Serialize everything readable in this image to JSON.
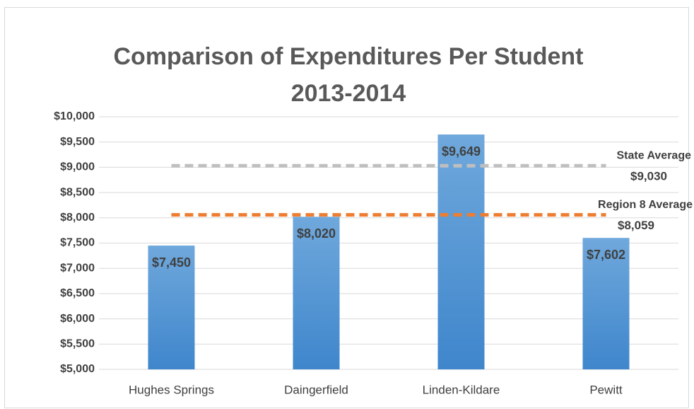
{
  "chart_data": {
    "type": "bar",
    "title": [
      "Comparison of Expenditures Per Student",
      "2013-2014"
    ],
    "categories": [
      "Hughes Springs",
      "Daingerfield",
      "Linden-Kildare",
      "Pewitt"
    ],
    "values": [
      7450,
      8020,
      9649,
      7602
    ],
    "value_labels": [
      "$7,450",
      "$8,020",
      "$9,649",
      "$7,602"
    ],
    "color": "#5b9bd5",
    "ylim": [
      5000,
      10000
    ],
    "yticks": [
      {
        "value": 5000,
        "label": "$5,000"
      },
      {
        "value": 5500,
        "label": "$5,500"
      },
      {
        "value": 6000,
        "label": "$6,000"
      },
      {
        "value": 6500,
        "label": "$6,500"
      },
      {
        "value": 7000,
        "label": "$7,000"
      },
      {
        "value": 7500,
        "label": "$7,500"
      },
      {
        "value": 8000,
        "label": "$8,000"
      },
      {
        "value": 8500,
        "label": "$8,500"
      },
      {
        "value": 9000,
        "label": "$9,000"
      },
      {
        "value": 9500,
        "label": "$9,500"
      },
      {
        "value": 10000,
        "label": "$10,000"
      }
    ],
    "grid": true,
    "reference_lines": [
      {
        "name": "State Average",
        "value": 9030,
        "value_label": "$9,030",
        "color": "#bfbfbf"
      },
      {
        "name": "Region 8 Average",
        "value": 8059,
        "value_label": "$8,059",
        "color": "#ed7d31"
      }
    ]
  }
}
